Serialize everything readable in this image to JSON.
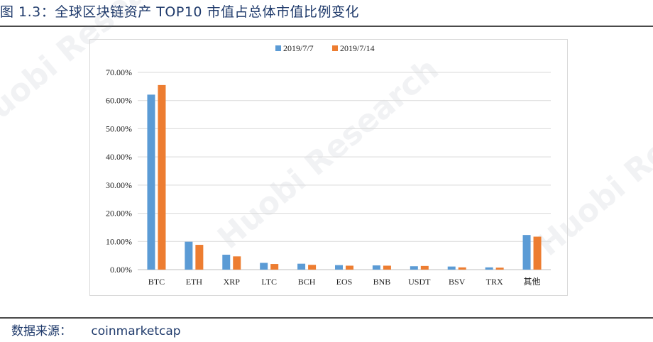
{
  "figure": {
    "title": "图 1.3：全球区块链资产 TOP10 市值占总体市值比例变化",
    "source_label": "数据来源：",
    "source_value": "coinmarketcap",
    "watermark": "Huobi Research"
  },
  "chart_data": {
    "type": "bar",
    "title": "",
    "xlabel": "",
    "ylabel": "",
    "categories": [
      "BTC",
      "ETH",
      "XRP",
      "LTC",
      "BCH",
      "EOS",
      "BNB",
      "USDT",
      "BSV",
      "TRX",
      "其他"
    ],
    "series": [
      {
        "name": "2019/7/7",
        "color": "#5b9bd5",
        "values": [
          62.1,
          9.9,
          5.3,
          2.4,
          2.1,
          1.6,
          1.5,
          1.2,
          1.1,
          0.8,
          12.3
        ]
      },
      {
        "name": "2019/7/14",
        "color": "#ed7d31",
        "values": [
          65.5,
          8.8,
          4.7,
          2.0,
          1.7,
          1.4,
          1.4,
          1.3,
          0.8,
          0.7,
          11.7
        ]
      }
    ],
    "ylim": [
      0,
      70
    ],
    "yticks": [
      "0.00%",
      "10.00%",
      "20.00%",
      "30.00%",
      "40.00%",
      "50.00%",
      "60.00%",
      "70.00%"
    ],
    "grid": true,
    "legend": "top-center"
  }
}
